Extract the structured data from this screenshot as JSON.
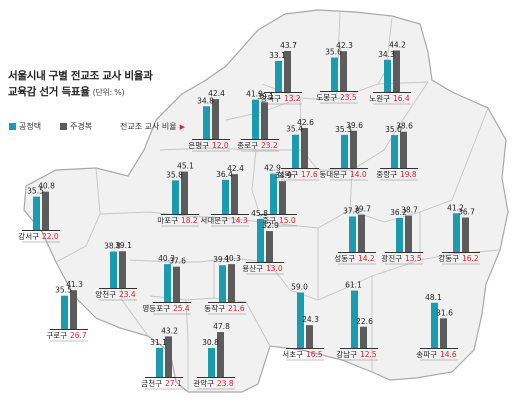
{
  "title_line1": "서울시내 구별 전교조 교사 비율과",
  "title_line2": "교육감 선거 득표율",
  "unit": "(단위: %)",
  "legend": {
    "gong": "공정택",
    "ju": "주경복",
    "ratio": "전교조 교사 비율"
  },
  "colors": {
    "gong": "#1b9bb0",
    "ju": "#5c5c5c",
    "ratio": "#e6202a",
    "map_fill": "#f1f1f1",
    "map_line": "#c4c4c4"
  },
  "chart_data": {
    "type": "bar",
    "series": [
      {
        "name": "공정택"
      },
      {
        "name": "주경복"
      },
      {
        "name": "전교조 교사 비율"
      }
    ],
    "categories": [
      "강북구",
      "도봉구",
      "노원구",
      "은평구",
      "종로구",
      "성북구",
      "동대문구",
      "중랑구",
      "마포구",
      "서대문구",
      "중구",
      "강서구",
      "성동구",
      "광진구",
      "강동구",
      "양천구",
      "영등포구",
      "동작구",
      "용산구",
      "구로구",
      "서초구",
      "강남구",
      "송파구",
      "금천구",
      "관악구"
    ],
    "districts": [
      {
        "name": "강북구",
        "gong": 33.1,
        "ju": 43.7,
        "ratio": "13.2"
      },
      {
        "name": "도봉구",
        "gong": 35.6,
        "ju": 42.3,
        "ratio": "23.5"
      },
      {
        "name": "노원구",
        "gong": 34.3,
        "ju": 44.2,
        "ratio": "16.4"
      },
      {
        "name": "은평구",
        "gong": 34.8,
        "ju": 42.4,
        "ratio": "12.0"
      },
      {
        "name": "종로구",
        "gong": 41.9,
        "ju": 39.1,
        "ratio": "23.2"
      },
      {
        "name": "성북구",
        "gong": 35.4,
        "ju": 42.6,
        "ratio": "17.6"
      },
      {
        "name": "동대문구",
        "gong": 35.3,
        "ju": 39.6,
        "ratio": "14.0"
      },
      {
        "name": "중랑구",
        "gong": 35.0,
        "ju": 38.6,
        "ratio": "19.8"
      },
      {
        "name": "마포구",
        "gong": 35.8,
        "ju": 45.1,
        "ratio": "18.2"
      },
      {
        "name": "서대문구",
        "gong": 36.4,
        "ju": 42.4,
        "ratio": "14.3"
      },
      {
        "name": "중구",
        "gong": 42.9,
        "ju": 34.9,
        "ratio": "15.0"
      },
      {
        "name": "강서구",
        "gong": 35.5,
        "ju": 40.8,
        "ratio": "22.0"
      },
      {
        "name": "성동구",
        "gong": 37.8,
        "ju": 39.7,
        "ratio": "14.2"
      },
      {
        "name": "광진구",
        "gong": 36.2,
        "ju": 38.7,
        "ratio": "13.5"
      },
      {
        "name": "강동구",
        "gong": 41.2,
        "ju": 36.7,
        "ratio": "16.2"
      },
      {
        "name": "양천구",
        "gong": 38.8,
        "ju": 39.1,
        "ratio": "23.4"
      },
      {
        "name": "영등포구",
        "gong": 40.3,
        "ju": 37.6,
        "ratio": "25.4"
      },
      {
        "name": "동작구",
        "gong": 39.1,
        "ju": 40.3,
        "ratio": "21.6"
      },
      {
        "name": "용산구",
        "gong": 45.8,
        "ju": 32.9,
        "ratio": "13.0"
      },
      {
        "name": "구로구",
        "gong": 35.5,
        "ju": 41.3,
        "ratio": "26.7"
      },
      {
        "name": "서초구",
        "gong": 59.0,
        "ju": 24.3,
        "ratio": "16.5"
      },
      {
        "name": "강남구",
        "gong": 61.1,
        "ju": 22.6,
        "ratio": "12.5"
      },
      {
        "name": "송파구",
        "gong": 48.1,
        "ju": 31.6,
        "ratio": "14.6"
      },
      {
        "name": "금천구",
        "gong": 31.1,
        "ju": 43.2,
        "ratio": "27.1"
      },
      {
        "name": "관악구",
        "gong": 30.8,
        "ju": 47.8,
        "ratio": "23.8"
      }
    ]
  }
}
